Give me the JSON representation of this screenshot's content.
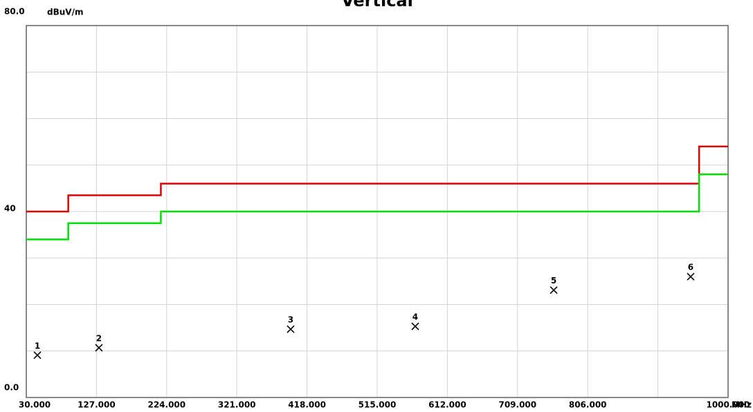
{
  "chart_data": {
    "type": "line",
    "title": "Vertical",
    "y_unit": "dBuV/m",
    "x_unit": "MHz",
    "xlim": [
      30,
      1000
    ],
    "ylim": [
      0,
      80
    ],
    "grid": true,
    "xticks": [
      {
        "value": 30,
        "label": "30.000"
      },
      {
        "value": 127,
        "label": "127.000"
      },
      {
        "value": 224,
        "label": "224.000"
      },
      {
        "value": 321,
        "label": "321.000"
      },
      {
        "value": 418,
        "label": "418.000"
      },
      {
        "value": 515,
        "label": "515.000"
      },
      {
        "value": 612,
        "label": "612.000"
      },
      {
        "value": 709,
        "label": "709.000"
      },
      {
        "value": 806,
        "label": "806.000"
      },
      {
        "value": 903,
        "label": null
      },
      {
        "value": 1000,
        "label": "1000.000"
      }
    ],
    "yticks": [
      {
        "value": 0,
        "label": "0.0"
      },
      {
        "value": 10,
        "label": null
      },
      {
        "value": 20,
        "label": null
      },
      {
        "value": 30,
        "label": null
      },
      40,
      {
        "value": 50,
        "label": null
      },
      {
        "value": 60,
        "label": null
      },
      {
        "value": 70,
        "label": null
      },
      {
        "value": 80,
        "label": "80.0"
      }
    ],
    "series": [
      {
        "mode": "line",
        "color": "#e00000",
        "x": [
          30,
          88,
          88,
          216,
          216,
          960,
          960,
          1000
        ],
        "values": [
          40,
          40,
          43.5,
          43.5,
          46,
          46,
          54,
          54
        ]
      },
      {
        "mode": "line",
        "color": "#00e000",
        "x": [
          30,
          88,
          88,
          216,
          216,
          960,
          960,
          1000
        ],
        "values": [
          34,
          34,
          37.5,
          37.5,
          40,
          40,
          48,
          48
        ]
      },
      {
        "mode": "markers",
        "color": "#000000",
        "x": [
          45.3,
          130.4,
          395.4,
          567.6,
          759,
          948.3
        ],
        "values": [
          9.1,
          10.7,
          14.7,
          15.3,
          23.1,
          26.0
        ],
        "labels": [
          "1",
          "2",
          "3",
          "4",
          "5",
          "6"
        ]
      }
    ]
  }
}
